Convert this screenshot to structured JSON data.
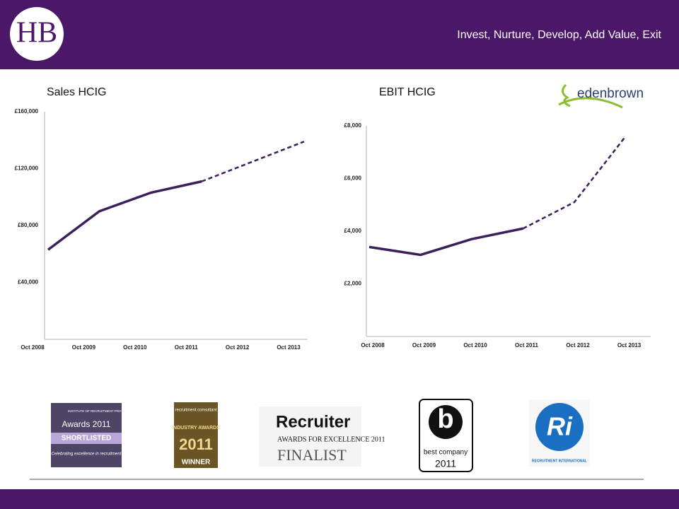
{
  "header": {
    "logo": "HB",
    "tagline": "Invest, Nurture, Develop, Add Value, Exit"
  },
  "brand": "edenbrown",
  "chart_data": [
    {
      "type": "line",
      "title": "Sales HCIG",
      "categories": [
        "Oct 2008",
        "Oct 2009",
        "Oct 2010",
        "Oct 2011",
        "Oct 2012",
        "Oct 2013"
      ],
      "series": [
        {
          "color": "#3d1f5c",
          "dashed": false,
          "values": [
            63000,
            90000,
            103000,
            111000,
            null,
            null
          ]
        },
        {
          "color": "#3d1f5c",
          "dashed": true,
          "values": [
            null,
            null,
            null,
            111000,
            125000,
            139000
          ]
        }
      ],
      "ylim": [
        0,
        160000
      ],
      "yticks": [
        {
          "value": 40000,
          "label": "£40,000"
        },
        {
          "value": 80000,
          "label": "£80,000"
        },
        {
          "value": 120000,
          "label": "£120,000"
        },
        {
          "value": 160000,
          "label": "£160,000"
        }
      ],
      "grid": false
    },
    {
      "type": "line",
      "title": "EBIT HCIG",
      "categories": [
        "Oct 2008",
        "Oct 2009",
        "Oct 2010",
        "Oct 2011",
        "Oct 2012",
        "Oct 2013"
      ],
      "series": [
        {
          "color": "#3d1f5c",
          "dashed": false,
          "values": [
            3400,
            3100,
            3700,
            4100,
            null,
            null
          ]
        },
        {
          "color": "#3d1f5c",
          "dashed": true,
          "values": [
            null,
            null,
            null,
            4100,
            5100,
            7600
          ]
        }
      ],
      "ylim": [
        0,
        8000
      ],
      "yticks": [
        {
          "value": 2000,
          "label": "£2,000"
        },
        {
          "value": 4000,
          "label": "£4,000"
        },
        {
          "value": 6000,
          "label": "£6,000"
        },
        {
          "value": 8000,
          "label": "£8,000"
        }
      ],
      "grid": false
    }
  ],
  "badges": [
    [
      "INSTITUTE OF RECRUITMENT PROFESSIONALS",
      "Awards 2011",
      "SHORTLISTED",
      "Celebrating excellence in recruitment"
    ],
    [
      "recruitment consultant",
      "INDUSTRY AWARDS",
      "2011",
      "WINNER"
    ],
    [
      "Recruiter",
      "AWARDS FOR EXCELLENCE 2011",
      "FINALIST"
    ],
    [
      "b",
      "best company",
      "2011"
    ],
    [
      "Ri",
      "RECRUITMENT INTERNATIONAL"
    ]
  ]
}
